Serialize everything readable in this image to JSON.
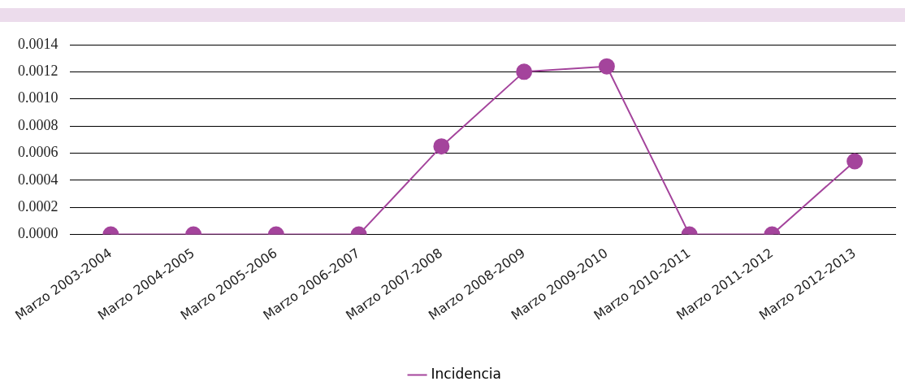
{
  "chart_data": {
    "type": "line",
    "categories": [
      "Marzo 2003-2004",
      "Marzo 2004-2005",
      "Marzo 2005-2006",
      "Marzo 2006-2007",
      "Marzo 2007-2008",
      "Marzo 2008-2009",
      "Marzo 2009-2010",
      "Marzo 2010-2011",
      "Marzo 2011-2012",
      "Marzo 2012-2013"
    ],
    "series": [
      {
        "name": "Incidencia",
        "color": "#a4449c",
        "values": [
          0,
          0,
          0,
          0,
          0.00065,
          0.0012,
          0.00124,
          0,
          0,
          0.00054
        ]
      }
    ],
    "ylim": [
      0,
      0.0014
    ],
    "yticks": [
      {
        "value": 0,
        "label": "0.0000"
      },
      {
        "value": 0.0002,
        "label": "0.0002"
      },
      {
        "value": 0.0004,
        "label": "0.0004"
      },
      {
        "value": 0.0006,
        "label": "0.0006"
      },
      {
        "value": 0.0008,
        "label": "0.0008"
      },
      {
        "value": 0.001,
        "label": "0.0010"
      },
      {
        "value": 0.0012,
        "label": "0.0012"
      },
      {
        "value": 0.0014,
        "label": "0.0014"
      }
    ],
    "grid": "y",
    "legend": "bottom",
    "marker": "circle",
    "line_style": "solid"
  }
}
